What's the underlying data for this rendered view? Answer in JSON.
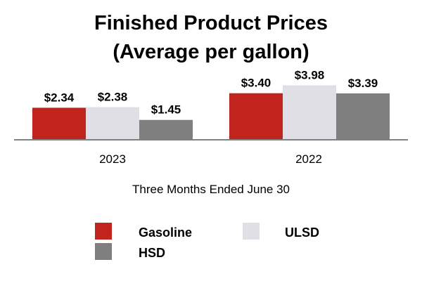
{
  "chart_data": {
    "type": "bar",
    "title": "Finished Product Prices",
    "subtitle": "(Average per gallon)",
    "xlabel": "Three Months Ended June 30",
    "ylabel": "",
    "categories": [
      "2023",
      "2022"
    ],
    "ylim": [
      0,
      4.5
    ],
    "grid": false,
    "legend_position": "bottom",
    "series": [
      {
        "name": "Gasoline",
        "color": "#c0241c",
        "values": [
          2.34,
          3.4
        ],
        "labels": [
          "$2.34",
          "$3.40"
        ]
      },
      {
        "name": "ULSD",
        "color": "#dfdfe5",
        "values": [
          2.38,
          3.98
        ],
        "labels": [
          "$2.38",
          "$3.98"
        ]
      },
      {
        "name": "HSD",
        "color": "#7f7f7f",
        "values": [
          1.45,
          3.39
        ],
        "labels": [
          "$1.45",
          "$3.39"
        ]
      }
    ]
  }
}
